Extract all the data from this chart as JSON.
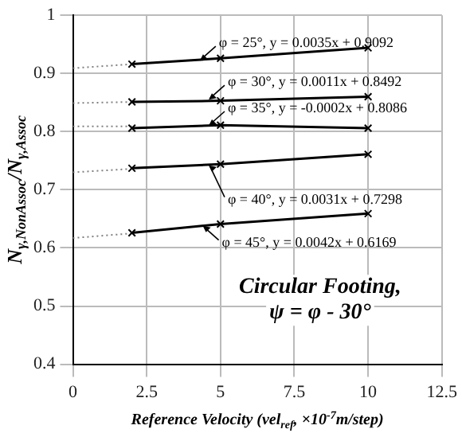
{
  "chart_data": {
    "type": "line",
    "xlabel": "Reference Velocity (vel$_{ref}$, ×10$^{-7}$m/step)",
    "ylabel": "N$_{γ,NonAssoc}$/N$_{γ,Assoc}$",
    "xlim": [
      0,
      12.5
    ],
    "xticks": [
      0,
      2.5,
      5,
      7.5,
      10,
      12.5
    ],
    "ylim": [
      0.4,
      1
    ],
    "yticks": [
      0.4,
      0.5,
      0.6,
      0.7,
      0.8,
      0.9,
      1
    ],
    "grid": true,
    "legend": false,
    "series": [
      {
        "type": "line",
        "color": "#000000",
        "x": [
          2,
          5,
          10
        ],
        "values": [
          0.916,
          0.926,
          0.944
        ],
        "marker": "cross",
        "line_style": "solid"
      },
      {
        "type": "line",
        "color": "#000000",
        "x": [
          2,
          5,
          10
        ],
        "values": [
          0.851,
          0.853,
          0.86
        ],
        "marker": "cross",
        "line_style": "solid"
      },
      {
        "type": "line",
        "color": "#000000",
        "x": [
          2,
          5,
          10
        ],
        "values": [
          0.806,
          0.811,
          0.806
        ],
        "marker": "cross",
        "line_style": "solid"
      },
      {
        "type": "line",
        "color": "#000000",
        "x": [
          2,
          5,
          10
        ],
        "values": [
          0.737,
          0.744,
          0.761
        ],
        "marker": "cross",
        "line_style": "solid"
      },
      {
        "type": "line",
        "color": "#000000",
        "x": [
          2,
          5,
          10
        ],
        "values": [
          0.626,
          0.641,
          0.659
        ],
        "marker": "cross",
        "line_style": "solid"
      },
      {
        "type": "line",
        "color": "#808080",
        "x": [
          0,
          2
        ],
        "values": [
          0.909,
          0.916
        ],
        "marker": "none",
        "line_style": "dotted"
      },
      {
        "type": "line",
        "color": "#808080",
        "x": [
          0,
          2
        ],
        "values": [
          0.849,
          0.851
        ],
        "marker": "none",
        "line_style": "dotted"
      },
      {
        "type": "line",
        "color": "#808080",
        "x": [
          0,
          2
        ],
        "values": [
          0.809,
          0.809
        ],
        "marker": "none",
        "line_style": "dotted"
      },
      {
        "type": "line",
        "color": "#808080",
        "x": [
          0,
          2
        ],
        "values": [
          0.73,
          0.736
        ],
        "marker": "none",
        "line_style": "dotted"
      },
      {
        "type": "line",
        "color": "#808080",
        "x": [
          0,
          2
        ],
        "values": [
          0.617,
          0.625
        ],
        "marker": "none",
        "line_style": "dotted"
      }
    ],
    "annotations": [
      {
        "text": "φ = 25°, y = 0.0035x + 0.9092",
        "x": 4.3,
        "y": 0.922
      },
      {
        "text": "φ = 30°, y = 0.0011x + 0.8492",
        "x": 4.6,
        "y": 0.855
      },
      {
        "text": "φ = 35°, y = -0.0002x + 0.8086",
        "x": 4.6,
        "y": 0.81
      },
      {
        "text": "φ = 40°, y = 0.0031x + 0.7298",
        "x": 4.6,
        "y": 0.742
      },
      {
        "text": "φ = 45°, y = 0.0042x + 0.6169",
        "x": 4.4,
        "y": 0.638
      },
      "Circular Footing,",
      "ψ = φ - 30°"
    ]
  }
}
